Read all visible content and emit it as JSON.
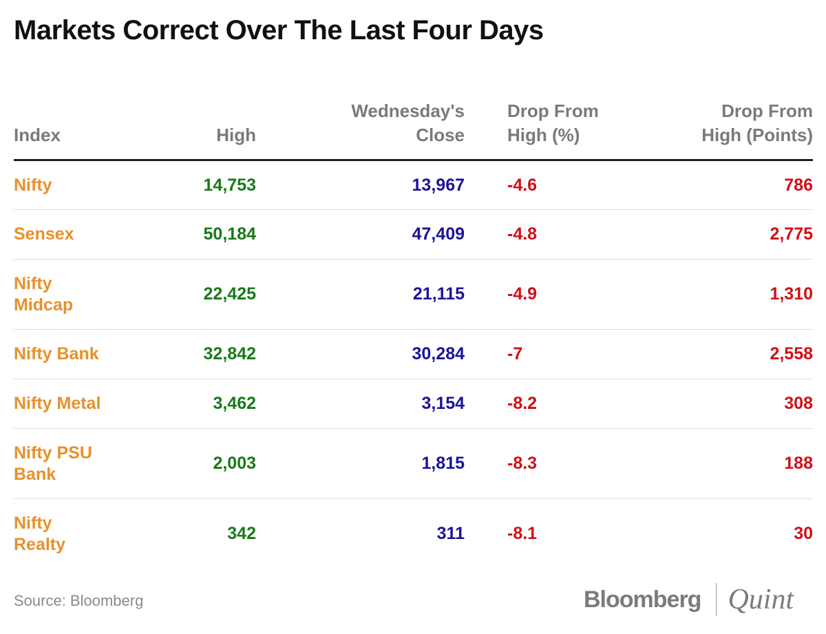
{
  "title": "Markets Correct Over The Last Four Days",
  "headers": {
    "index": "Index",
    "high": "High",
    "close_line1": "Wednesday's",
    "close_line2": "Close",
    "drop_pct_line1": "Drop From",
    "drop_pct_line2": "High (%)",
    "drop_pts_line1": "Drop From",
    "drop_pts_line2": "High (Points)"
  },
  "rows": [
    {
      "name_line1": "Nifty",
      "name_line2": "",
      "high": "14,753",
      "close": "13,967",
      "drop_pct": "-4.6",
      "drop_pts": "786"
    },
    {
      "name_line1": "Sensex",
      "name_line2": "",
      "high": "50,184",
      "close": "47,409",
      "drop_pct": "-4.8",
      "drop_pts": "2,775"
    },
    {
      "name_line1": "Nifty",
      "name_line2": "Midcap",
      "high": "22,425",
      "close": "21,115",
      "drop_pct": "-4.9",
      "drop_pts": "1,310"
    },
    {
      "name_line1": "Nifty Bank",
      "name_line2": "",
      "high": "32,842",
      "close": "30,284",
      "drop_pct": "-7",
      "drop_pts": "2,558"
    },
    {
      "name_line1": "Nifty Metal",
      "name_line2": "",
      "high": "3,462",
      "close": "3,154",
      "drop_pct": "-8.2",
      "drop_pts": "308"
    },
    {
      "name_line1": "Nifty PSU",
      "name_line2": "Bank",
      "high": "2,003",
      "close": "1,815",
      "drop_pct": "-8.3",
      "drop_pts": "188"
    },
    {
      "name_line1": "Nifty",
      "name_line2": "Realty",
      "high": "342",
      "close": "311",
      "drop_pct": "-8.1",
      "drop_pts": "30"
    }
  ],
  "source": "Source: Bloomberg",
  "logo": {
    "left": "Bloomberg",
    "right": "Quint"
  },
  "colors": {
    "index_name": "#e8902a",
    "high": "#177a17",
    "close": "#1a139a",
    "drop": "#d10f16",
    "header": "#7a7a7a"
  },
  "chart_data": {
    "type": "table",
    "title": "Markets Correct Over The Last Four Days",
    "columns": [
      "Index",
      "High",
      "Wednesday's Close",
      "Drop From High (%)",
      "Drop From High (Points)"
    ],
    "rows": [
      [
        "Nifty",
        14753,
        13967,
        -4.6,
        786
      ],
      [
        "Sensex",
        50184,
        47409,
        -4.8,
        2775
      ],
      [
        "Nifty Midcap",
        22425,
        21115,
        -4.9,
        1310
      ],
      [
        "Nifty Bank",
        32842,
        30284,
        -7,
        2558
      ],
      [
        "Nifty Metal",
        3462,
        3154,
        -8.2,
        308
      ],
      [
        "Nifty PSU Bank",
        2003,
        1815,
        -8.3,
        188
      ],
      [
        "Nifty Realty",
        342,
        311,
        -8.1,
        30
      ]
    ],
    "source": "Source: Bloomberg"
  }
}
